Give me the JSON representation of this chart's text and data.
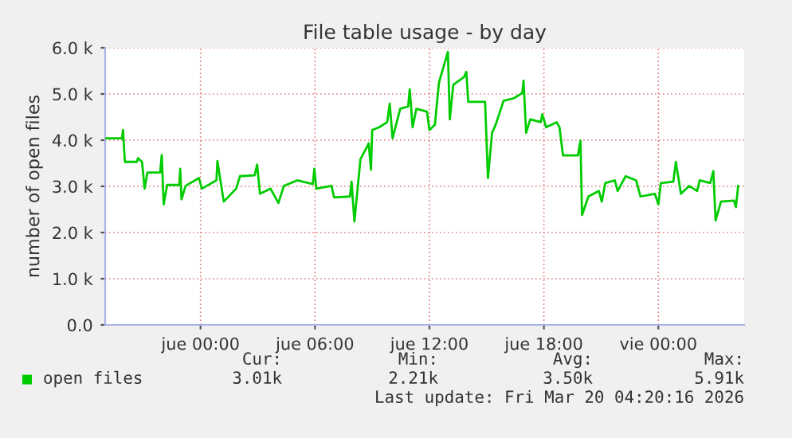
{
  "chart_data": {
    "type": "line",
    "title": "File table usage - by day",
    "ylabel": "number of open files",
    "x": [
      "2026-03-18T19:04",
      "2026-03-18T19:53",
      "2026-03-18T19:56",
      "2026-03-18T20:02",
      "2026-03-18T20:40",
      "2026-03-18T20:43",
      "2026-03-18T20:56",
      "2026-03-18T21:04",
      "2026-03-18T21:13",
      "2026-03-18T21:53",
      "2026-03-18T21:58",
      "2026-03-18T22:04",
      "2026-03-18T22:15",
      "2026-03-18T22:53",
      "2026-03-18T22:56",
      "2026-03-18T23:00",
      "2026-03-18T23:13",
      "2026-03-18T23:55",
      "2026-03-19T00:04",
      "2026-03-19T00:50",
      "2026-03-19T00:53",
      "2026-03-19T01:13",
      "2026-03-19T01:52",
      "2026-03-19T02:04",
      "2026-03-19T02:50",
      "2026-03-19T02:58",
      "2026-03-19T03:07",
      "2026-03-19T03:40",
      "2026-03-19T04:05",
      "2026-03-19T04:22",
      "2026-03-19T05:04",
      "2026-03-19T05:53",
      "2026-03-19T05:58",
      "2026-03-19T06:04",
      "2026-03-19T06:52",
      "2026-03-19T07:00",
      "2026-03-19T07:50",
      "2026-03-19T07:55",
      "2026-03-19T08:04",
      "2026-03-19T08:23",
      "2026-03-19T08:49",
      "2026-03-19T08:56",
      "2026-03-19T09:00",
      "2026-03-19T09:22",
      "2026-03-19T09:47",
      "2026-03-19T09:55",
      "2026-03-19T10:04",
      "2026-03-19T10:28",
      "2026-03-19T10:53",
      "2026-03-19T10:58",
      "2026-03-19T11:07",
      "2026-03-19T11:19",
      "2026-03-19T11:52",
      "2026-03-19T12:00",
      "2026-03-19T12:17",
      "2026-03-19T12:30",
      "2026-03-19T12:58",
      "2026-03-19T13:04",
      "2026-03-19T13:15",
      "2026-03-19T13:49",
      "2026-03-19T13:56",
      "2026-03-19T14:02",
      "2026-03-19T14:55",
      "2026-03-19T15:04",
      "2026-03-19T15:17",
      "2026-03-19T15:28",
      "2026-03-19T15:53",
      "2026-03-19T16:26",
      "2026-03-19T16:52",
      "2026-03-19T16:56",
      "2026-03-19T17:04",
      "2026-03-19T17:17",
      "2026-03-19T17:50",
      "2026-03-19T17:55",
      "2026-03-19T18:07",
      "2026-03-19T18:40",
      "2026-03-19T18:49",
      "2026-03-19T19:00",
      "2026-03-19T19:47",
      "2026-03-19T19:55",
      "2026-03-19T20:00",
      "2026-03-19T20:20",
      "2026-03-19T20:53",
      "2026-03-19T21:02",
      "2026-03-19T21:13",
      "2026-03-19T21:43",
      "2026-03-19T21:52",
      "2026-03-19T22:17",
      "2026-03-19T22:50",
      "2026-03-19T23:04",
      "2026-03-19T23:49",
      "2026-03-20T00:00",
      "2026-03-20T00:08",
      "2026-03-20T00:47",
      "2026-03-20T00:55",
      "2026-03-20T01:11",
      "2026-03-20T01:37",
      "2026-03-20T02:02",
      "2026-03-20T02:10",
      "2026-03-20T02:43",
      "2026-03-20T02:53",
      "2026-03-20T03:00",
      "2026-03-20T03:17",
      "2026-03-20T03:58",
      "2026-03-20T04:04",
      "2026-03-20T04:11"
    ],
    "series": [
      {
        "name": "open files",
        "color": "#00cc00",
        "values": [
          4040,
          4040,
          4220,
          3530,
          3530,
          3610,
          3530,
          2950,
          3300,
          3300,
          3680,
          2610,
          3030,
          3030,
          3380,
          2720,
          3010,
          3180,
          2950,
          3130,
          3550,
          2670,
          2950,
          3220,
          3240,
          3470,
          2840,
          2950,
          2640,
          3010,
          3130,
          3050,
          3380,
          2950,
          3010,
          2760,
          2780,
          3100,
          2240,
          3590,
          3930,
          3360,
          4220,
          4280,
          4390,
          4790,
          4040,
          4680,
          4730,
          5100,
          4280,
          4680,
          4620,
          4220,
          4330,
          5250,
          5910,
          4450,
          5200,
          5370,
          5480,
          4830,
          4830,
          3180,
          4160,
          4330,
          4850,
          4910,
          5020,
          5290,
          4160,
          4450,
          4390,
          4560,
          4280,
          4390,
          4280,
          3670,
          3670,
          3990,
          2380,
          2780,
          2900,
          2670,
          3070,
          3130,
          2900,
          3220,
          3130,
          2780,
          2840,
          2610,
          3070,
          3100,
          3530,
          2840,
          3010,
          2900,
          3130,
          3070,
          3330,
          2260,
          2670,
          2690,
          2550,
          3010
        ]
      }
    ],
    "xlim": [
      "2026-03-18T19:00",
      "2026-03-20T04:30"
    ],
    "xticks": [
      {
        "value": "2026-03-19T00:00",
        "label": "jue 00:00"
      },
      {
        "value": "2026-03-19T06:00",
        "label": "jue 06:00"
      },
      {
        "value": "2026-03-19T12:00",
        "label": "jue 12:00"
      },
      {
        "value": "2026-03-19T18:00",
        "label": "jue 18:00"
      },
      {
        "value": "2026-03-20T00:00",
        "label": "vie 00:00"
      }
    ],
    "ylim": [
      0,
      6000
    ],
    "yticks": [
      {
        "value": 0,
        "label": "0.0"
      },
      {
        "value": 1000,
        "label": "1.0 k"
      },
      {
        "value": 2000,
        "label": "2.0 k"
      },
      {
        "value": 3000,
        "label": "3.0 k"
      },
      {
        "value": 4000,
        "label": "4.0 k"
      },
      {
        "value": 5000,
        "label": "5.0 k"
      },
      {
        "value": 6000,
        "label": "6.0 k"
      }
    ],
    "grid": true,
    "legend": "bottom left",
    "marker": "none",
    "line_style": "solid",
    "annotations": [
      "Cur:",
      "Min:",
      "Avg:",
      "Max:",
      "3.01k",
      "2.21k",
      "3.50k",
      "5.91k",
      "Last update: Fri Mar 20 04:20:16 2026"
    ]
  }
}
